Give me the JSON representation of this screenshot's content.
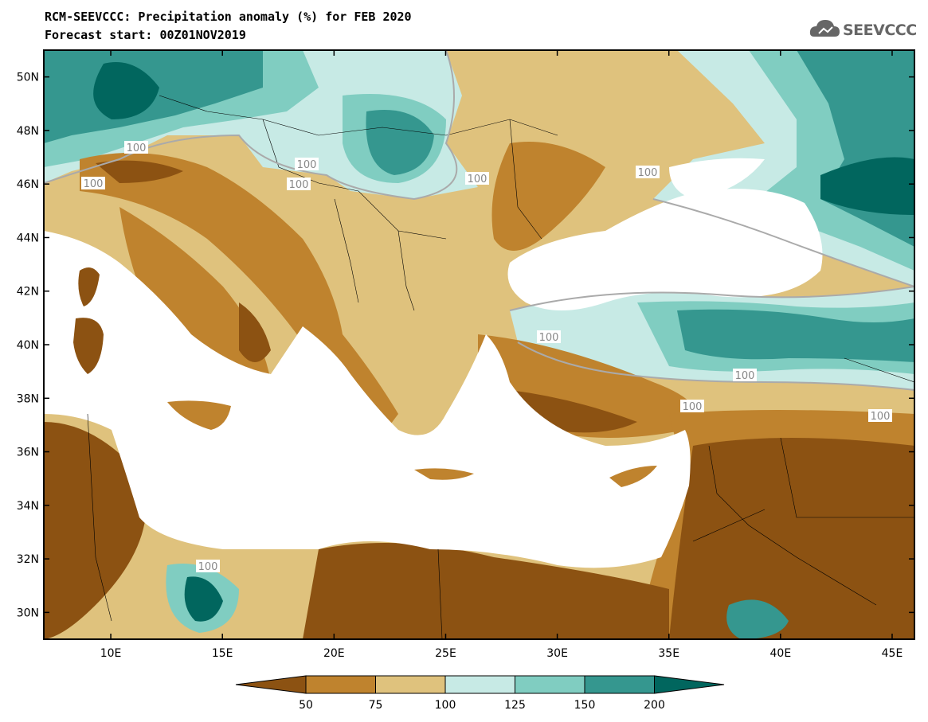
{
  "header": {
    "title_line1": "RCM-SEEVCCC: Precipitation anomaly (%) for FEB 2020",
    "title_line2": "Forecast start: 00Z01NOV2019"
  },
  "logo": {
    "text": "SEEVCCC",
    "icon": "cloud-icon"
  },
  "map": {
    "lon_range": [
      7,
      46
    ],
    "lat_range": [
      29,
      51
    ],
    "lat_ticks": [
      "50N",
      "48N",
      "46N",
      "44N",
      "42N",
      "40N",
      "38N",
      "36N",
      "34N",
      "32N",
      "30N"
    ],
    "lon_ticks": [
      "10E",
      "15E",
      "20E",
      "25E",
      "30E",
      "35E",
      "40E",
      "45E"
    ],
    "contour_labels": [
      "100",
      "100",
      "100",
      "100",
      "100",
      "100",
      "100",
      "100",
      "100",
      "100",
      "100"
    ]
  },
  "colorbar": {
    "labels": [
      "50",
      "75",
      "100",
      "125",
      "150",
      "200"
    ],
    "colors": [
      "#8c5212",
      "#bf832e",
      "#dfc27d",
      "#c7eae5",
      "#80cdc1",
      "#35978f",
      "#01665e"
    ]
  }
}
